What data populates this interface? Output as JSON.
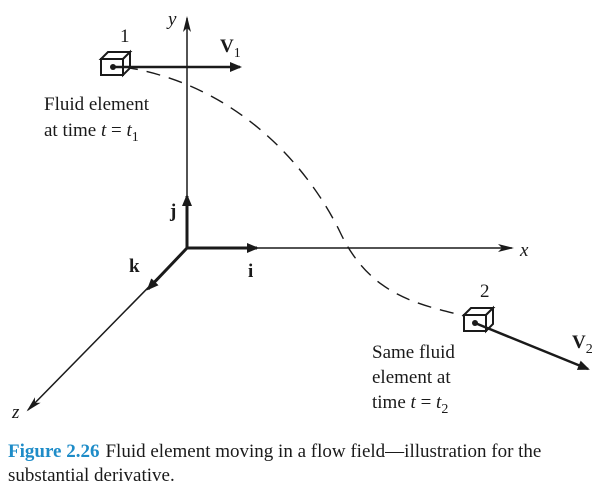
{
  "axes": {
    "x": "x",
    "y": "y",
    "z": "z"
  },
  "unit_vectors": {
    "i": "i",
    "j": "j",
    "k": "k"
  },
  "element1": {
    "number": "1",
    "velocity": "V",
    "velocity_sub": "1",
    "label_line1": "Fluid element",
    "label_line2_prefix": "at time ",
    "t": "t",
    "eq": " = ",
    "t_sub": "1"
  },
  "element2": {
    "number": "2",
    "velocity": "V",
    "velocity_sub": "2",
    "label_line1": "Same fluid",
    "label_line2": "element at",
    "label_line3_prefix": "time ",
    "t": "t",
    "eq": " = ",
    "t_sub": "2"
  },
  "caption": {
    "label": "Figure 2.26",
    "text": "Fluid element moving in a flow field—illustration for the substantial derivative."
  },
  "colors": {
    "caption_label": "#1e8cc8",
    "ink": "#1a1a1a"
  }
}
